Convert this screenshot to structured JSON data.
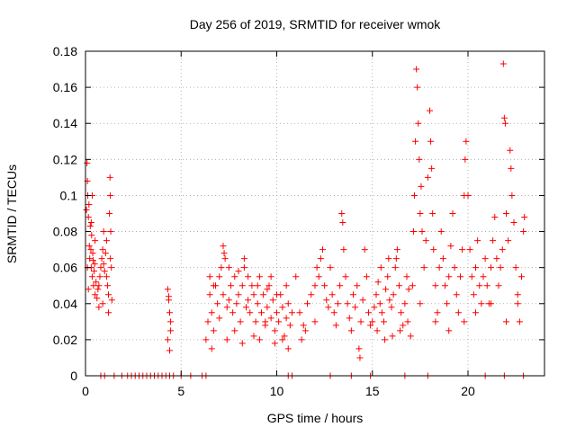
{
  "chart_data": {
    "type": "scatter",
    "title": "Day 256 of 2019, SRMTID for receiver wmok",
    "xlabel": "GPS time / hours",
    "ylabel": "SRMTID / TECUs",
    "xlim": [
      0,
      24
    ],
    "ylim": [
      0,
      0.18
    ],
    "x_ticks": [
      0,
      5,
      10,
      15,
      20
    ],
    "x_tick_labels": [
      "0",
      "5",
      "10",
      "15",
      "20"
    ],
    "y_ticks": [
      0,
      0.02,
      0.04,
      0.06,
      0.08,
      0.1,
      0.12,
      0.14,
      0.16,
      0.18
    ],
    "y_tick_labels": [
      "0",
      "0.02",
      "0.04",
      "0.06",
      "0.08",
      "0.1",
      "0.12",
      "0.14",
      "0.16",
      "0.18"
    ],
    "grid": true,
    "marker": "+",
    "series": [
      {
        "name": "SRMTID",
        "color": "#ff0000",
        "points": [
          [
            0.05,
            0.092
          ],
          [
            0.08,
            0.118
          ],
          [
            0.1,
            0.108
          ],
          [
            0.12,
            0.1
          ],
          [
            0.15,
            0.088
          ],
          [
            0.18,
            0.095
          ],
          [
            0.2,
            0.072
          ],
          [
            0.22,
            0.065
          ],
          [
            0.25,
            0.083
          ],
          [
            0.28,
            0.07
          ],
          [
            0.3,
            0.06
          ],
          [
            0.32,
            0.078
          ],
          [
            0.35,
            0.055
          ],
          [
            0.38,
            0.068
          ],
          [
            0.4,
            0.064
          ],
          [
            0.42,
            0.05
          ],
          [
            0.45,
            0.058
          ],
          [
            0.48,
            0.062
          ],
          [
            0.5,
            0.045
          ],
          [
            0.55,
            0.052
          ],
          [
            0.6,
            0.043
          ],
          [
            0.65,
            0.048
          ],
          [
            0.7,
            0.038
          ],
          [
            0.75,
            0.055
          ],
          [
            0.8,
            0.06
          ],
          [
            0.85,
            0.065
          ],
          [
            0.9,
            0.07
          ],
          [
            0.95,
            0.062
          ],
          [
            1.0,
            0.058
          ],
          [
            1.05,
            0.068
          ],
          [
            1.1,
            0.075
          ],
          [
            1.15,
            0.05
          ],
          [
            1.2,
            0.045
          ],
          [
            1.25,
            0.09
          ],
          [
            1.28,
            0.11
          ],
          [
            1.3,
            0.1
          ],
          [
            1.32,
            0.08
          ],
          [
            1.35,
            0.06
          ],
          [
            1.38,
            0.042
          ],
          [
            1.2,
            0.035
          ],
          [
            0.1,
            0.06
          ],
          [
            0.3,
            0.085
          ],
          [
            0.5,
            0.075
          ],
          [
            0.7,
            0.05
          ],
          [
            0.9,
            0.04
          ],
          [
            1.1,
            0.055
          ],
          [
            1.3,
            0.065
          ],
          [
            0.15,
            0.048
          ],
          [
            0.95,
            0.08
          ],
          [
            0.35,
            0.1
          ],
          [
            4.3,
            0.048
          ],
          [
            4.35,
            0.042
          ],
          [
            4.4,
            0.035
          ],
          [
            4.45,
            0.03
          ],
          [
            4.3,
            0.02
          ],
          [
            4.4,
            0.014
          ],
          [
            4.45,
            0.025
          ],
          [
            4.35,
            0.044
          ],
          [
            6.3,
            0.02
          ],
          [
            6.4,
            0.03
          ],
          [
            6.5,
            0.045
          ],
          [
            6.6,
            0.035
          ],
          [
            6.7,
            0.025
          ],
          [
            6.8,
            0.05
          ],
          [
            6.9,
            0.04
          ],
          [
            7.0,
            0.032
          ],
          [
            7.1,
            0.06
          ],
          [
            7.2,
            0.045
          ],
          [
            7.3,
            0.065
          ],
          [
            7.4,
            0.038
          ],
          [
            7.5,
            0.042
          ],
          [
            7.6,
            0.05
          ],
          [
            7.7,
            0.035
          ],
          [
            7.8,
            0.055
          ],
          [
            7.9,
            0.04
          ],
          [
            8.0,
            0.045
          ],
          [
            8.1,
            0.03
          ],
          [
            8.2,
            0.05
          ],
          [
            8.3,
            0.06
          ],
          [
            8.4,
            0.038
          ],
          [
            8.5,
            0.042
          ],
          [
            8.6,
            0.035
          ],
          [
            8.7,
            0.05
          ],
          [
            8.8,
            0.045
          ],
          [
            8.9,
            0.03
          ],
          [
            9.0,
            0.04
          ],
          [
            9.1,
            0.055
          ],
          [
            9.2,
            0.035
          ],
          [
            9.3,
            0.045
          ],
          [
            9.4,
            0.028
          ],
          [
            9.5,
            0.038
          ],
          [
            9.6,
            0.05
          ],
          [
            9.7,
            0.032
          ],
          [
            9.8,
            0.042
          ],
          [
            9.9,
            0.025
          ],
          [
            10.0,
            0.035
          ],
          [
            10.1,
            0.03
          ],
          [
            10.2,
            0.045
          ],
          [
            10.3,
            0.038
          ],
          [
            10.4,
            0.022
          ],
          [
            10.5,
            0.032
          ],
          [
            10.6,
            0.04
          ],
          [
            10.7,
            0.028
          ],
          [
            10.8,
            0.035
          ],
          [
            7.2,
            0.072
          ],
          [
            7.25,
            0.068
          ],
          [
            8.3,
            0.065
          ],
          [
            9.7,
            0.055
          ],
          [
            6.5,
            0.055
          ],
          [
            6.7,
            0.05
          ],
          [
            7.0,
            0.055
          ],
          [
            7.5,
            0.06
          ],
          [
            8.0,
            0.058
          ],
          [
            8.5,
            0.055
          ],
          [
            9.0,
            0.05
          ],
          [
            9.5,
            0.048
          ],
          [
            10.0,
            0.045
          ],
          [
            10.5,
            0.05
          ],
          [
            6.6,
            0.015
          ],
          [
            7.4,
            0.02
          ],
          [
            8.2,
            0.018
          ],
          [
            9.1,
            0.02
          ],
          [
            9.9,
            0.018
          ],
          [
            10.6,
            0.015
          ],
          [
            7.8,
            0.025
          ],
          [
            8.8,
            0.022
          ],
          [
            9.4,
            0.03
          ],
          [
            10.3,
            0.02
          ],
          [
            11.0,
            0.055
          ],
          [
            11.2,
            0.035
          ],
          [
            11.4,
            0.028
          ],
          [
            11.6,
            0.04
          ],
          [
            11.8,
            0.045
          ],
          [
            12.0,
            0.05
          ],
          [
            12.1,
            0.06
          ],
          [
            12.2,
            0.055
          ],
          [
            12.3,
            0.065
          ],
          [
            12.4,
            0.07
          ],
          [
            12.5,
            0.05
          ],
          [
            12.6,
            0.042
          ],
          [
            12.7,
            0.038
          ],
          [
            12.8,
            0.06
          ],
          [
            12.9,
            0.045
          ],
          [
            13.0,
            0.035
          ],
          [
            13.1,
            0.028
          ],
          [
            13.2,
            0.04
          ],
          [
            13.3,
            0.05
          ],
          [
            13.4,
            0.09
          ],
          [
            13.45,
            0.085
          ],
          [
            13.5,
            0.07
          ],
          [
            13.6,
            0.055
          ],
          [
            13.7,
            0.04
          ],
          [
            13.8,
            0.032
          ],
          [
            13.9,
            0.025
          ],
          [
            14.0,
            0.045
          ],
          [
            14.1,
            0.038
          ],
          [
            14.2,
            0.05
          ],
          [
            14.3,
            0.015
          ],
          [
            14.35,
            0.01
          ],
          [
            14.4,
            0.03
          ],
          [
            14.5,
            0.042
          ],
          [
            14.6,
            0.07
          ],
          [
            14.7,
            0.055
          ],
          [
            14.8,
            0.035
          ],
          [
            14.9,
            0.028
          ],
          [
            11.3,
            0.02
          ],
          [
            11.5,
            0.025
          ],
          [
            12.0,
            0.03
          ],
          [
            15.0,
            0.03
          ],
          [
            15.1,
            0.038
          ],
          [
            15.2,
            0.045
          ],
          [
            15.3,
            0.052
          ],
          [
            15.4,
            0.04
          ],
          [
            15.5,
            0.035
          ],
          [
            15.6,
            0.03
          ],
          [
            15.7,
            0.048
          ],
          [
            15.8,
            0.055
          ],
          [
            15.9,
            0.042
          ],
          [
            16.0,
            0.038
          ],
          [
            16.1,
            0.045
          ],
          [
            16.2,
            0.06
          ],
          [
            16.3,
            0.07
          ],
          [
            16.4,
            0.05
          ],
          [
            16.5,
            0.035
          ],
          [
            16.6,
            0.028
          ],
          [
            16.7,
            0.04
          ],
          [
            16.8,
            0.055
          ],
          [
            16.9,
            0.048
          ],
          [
            15.25,
            0.025
          ],
          [
            15.65,
            0.02
          ],
          [
            16.05,
            0.022
          ],
          [
            16.45,
            0.025
          ],
          [
            16.85,
            0.03
          ],
          [
            15.45,
            0.06
          ],
          [
            16.25,
            0.065
          ],
          [
            15.85,
            0.065
          ],
          [
            17.0,
            0.022
          ],
          [
            17.1,
            0.05
          ],
          [
            17.15,
            0.08
          ],
          [
            17.2,
            0.1
          ],
          [
            17.25,
            0.13
          ],
          [
            17.3,
            0.17
          ],
          [
            17.35,
            0.16
          ],
          [
            17.4,
            0.14
          ],
          [
            17.45,
            0.12
          ],
          [
            17.5,
            0.09
          ],
          [
            17.55,
            0.105
          ],
          [
            17.6,
            0.08
          ],
          [
            17.7,
            0.06
          ],
          [
            17.8,
            0.075
          ],
          [
            17.9,
            0.11
          ],
          [
            18.0,
            0.147
          ],
          [
            18.05,
            0.13
          ],
          [
            18.1,
            0.115
          ],
          [
            18.15,
            0.09
          ],
          [
            18.2,
            0.07
          ],
          [
            18.3,
            0.05
          ],
          [
            18.4,
            0.035
          ],
          [
            18.5,
            0.06
          ],
          [
            18.6,
            0.08
          ],
          [
            18.7,
            0.065
          ],
          [
            18.8,
            0.05
          ],
          [
            18.9,
            0.04
          ],
          [
            19.0,
            0.055
          ],
          [
            19.1,
            0.072
          ],
          [
            19.2,
            0.09
          ],
          [
            19.3,
            0.06
          ],
          [
            19.4,
            0.045
          ],
          [
            19.5,
            0.035
          ],
          [
            19.6,
            0.055
          ],
          [
            19.7,
            0.07
          ],
          [
            19.8,
            0.1
          ],
          [
            19.85,
            0.12
          ],
          [
            19.9,
            0.13
          ],
          [
            20.0,
            0.1
          ],
          [
            20.1,
            0.07
          ],
          [
            20.2,
            0.055
          ],
          [
            20.3,
            0.045
          ],
          [
            20.4,
            0.06
          ],
          [
            20.5,
            0.075
          ],
          [
            20.6,
            0.05
          ],
          [
            20.7,
            0.04
          ],
          [
            20.8,
            0.055
          ],
          [
            20.9,
            0.065
          ],
          [
            21.0,
            0.05
          ],
          [
            21.1,
            0.04
          ],
          [
            21.2,
            0.06
          ],
          [
            21.3,
            0.075
          ],
          [
            21.4,
            0.088
          ],
          [
            21.5,
            0.065
          ],
          [
            21.6,
            0.05
          ],
          [
            21.7,
            0.06
          ],
          [
            21.8,
            0.07
          ],
          [
            21.85,
            0.173
          ],
          [
            21.9,
            0.143
          ],
          [
            21.95,
            0.14
          ],
          [
            22.0,
            0.09
          ],
          [
            22.1,
            0.075
          ],
          [
            22.2,
            0.125
          ],
          [
            22.25,
            0.115
          ],
          [
            22.3,
            0.1
          ],
          [
            22.4,
            0.085
          ],
          [
            22.5,
            0.06
          ],
          [
            22.6,
            0.045
          ],
          [
            22.7,
            0.03
          ],
          [
            22.8,
            0.055
          ],
          [
            22.9,
            0.08
          ],
          [
            22.95,
            0.088
          ],
          [
            17.5,
            0.04
          ],
          [
            18.3,
            0.03
          ],
          [
            19.0,
            0.025
          ],
          [
            19.8,
            0.03
          ],
          [
            20.4,
            0.035
          ],
          [
            21.2,
            0.04
          ],
          [
            22.0,
            0.03
          ],
          [
            22.6,
            0.04
          ]
        ]
      }
    ],
    "zero_points_x": [
      0.8,
      1.0,
      1.5,
      1.9,
      2.2,
      2.4,
      2.6,
      2.8,
      3.0,
      3.2,
      3.4,
      3.6,
      3.8,
      4.0,
      4.2,
      4.4,
      4.6,
      5.0,
      5.5,
      6.1,
      6.3,
      10.6,
      10.8,
      12.8,
      13.9,
      14.9,
      16.7,
      17.9,
      20.9,
      21.9,
      22.9
    ]
  }
}
